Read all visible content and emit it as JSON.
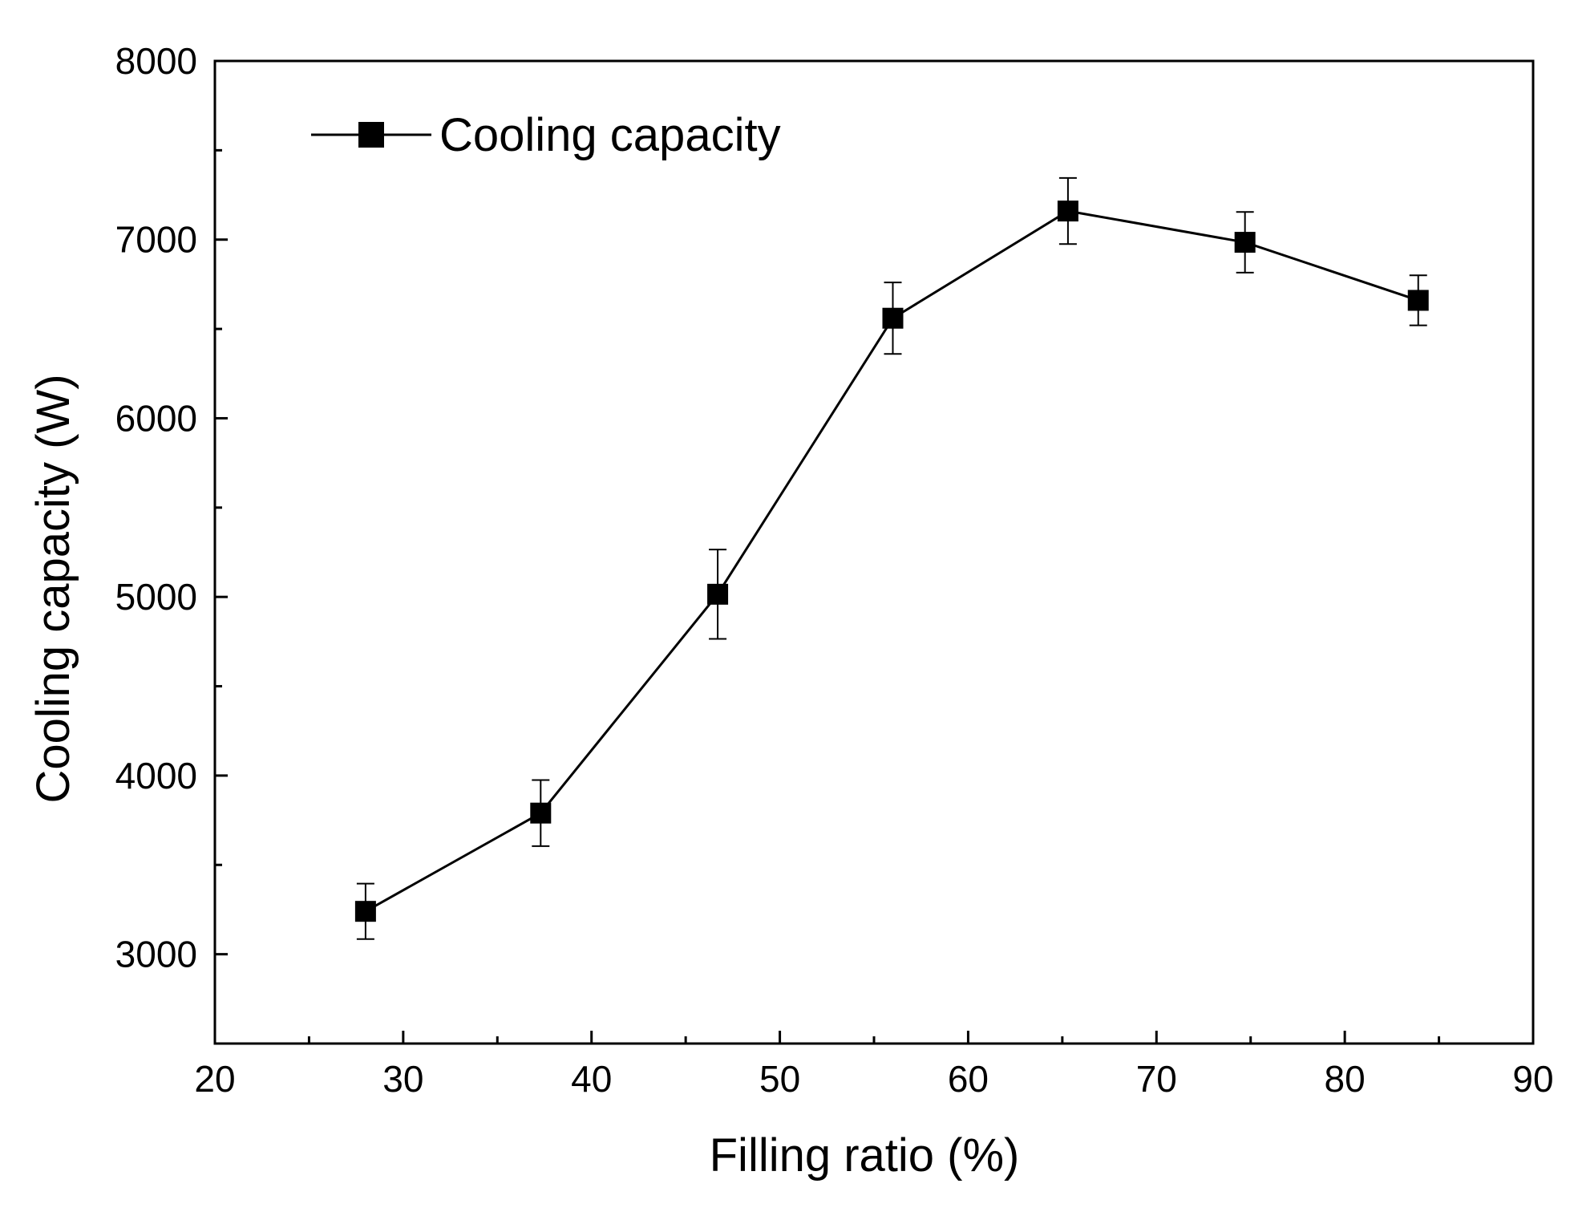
{
  "chart_data": {
    "type": "line",
    "title": "",
    "xlabel": "Filling ratio (%)",
    "ylabel": "Cooling capacity (W)",
    "xlim": [
      20,
      90
    ],
    "ylim": [
      2500,
      8000
    ],
    "xticks": [
      20,
      30,
      40,
      50,
      60,
      70,
      80,
      90
    ],
    "xticks_minor": [
      25,
      35,
      45,
      55,
      65,
      75,
      85
    ],
    "yticks": [
      3000,
      4000,
      5000,
      6000,
      7000,
      8000
    ],
    "yticks_minor": [
      2500,
      3500,
      4500,
      5500,
      6500,
      7500
    ],
    "grid": false,
    "legend_position": "top-left",
    "series": [
      {
        "name": "Cooling capacity",
        "marker": "square",
        "color": "#000000",
        "x": [
          28.0,
          37.3,
          46.7,
          56.0,
          65.3,
          74.7,
          83.9
        ],
        "y": [
          3240,
          3790,
          5015,
          6560,
          7160,
          6985,
          6660
        ],
        "error": [
          155,
          185,
          250,
          200,
          185,
          170,
          140
        ]
      }
    ]
  }
}
